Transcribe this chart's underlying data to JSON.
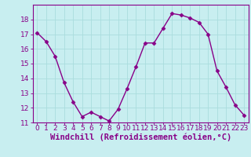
{
  "x": [
    0,
    1,
    2,
    3,
    4,
    5,
    6,
    7,
    8,
    9,
    10,
    11,
    12,
    13,
    14,
    15,
    16,
    17,
    18,
    19,
    20,
    21,
    22,
    23
  ],
  "y": [
    17.1,
    16.5,
    15.5,
    13.7,
    12.4,
    11.4,
    11.7,
    11.4,
    11.1,
    11.9,
    13.3,
    14.8,
    16.4,
    16.4,
    17.4,
    18.4,
    18.3,
    18.1,
    17.8,
    17.0,
    14.5,
    13.4,
    12.2,
    11.5
  ],
  "line_color": "#880088",
  "marker": "D",
  "marker_size": 2.5,
  "bg_color": "#c8eef0",
  "grid_color": "#aadddd",
  "xlabel": "Windchill (Refroidissement éolien,°C)",
  "xlabel_color": "#880088",
  "tick_color": "#880088",
  "spine_color": "#880088",
  "ylim": [
    11,
    19
  ],
  "xlim": [
    -0.5,
    23.5
  ],
  "yticks": [
    11,
    12,
    13,
    14,
    15,
    16,
    17,
    18
  ],
  "xticks": [
    0,
    1,
    2,
    3,
    4,
    5,
    6,
    7,
    8,
    9,
    10,
    11,
    12,
    13,
    14,
    15,
    16,
    17,
    18,
    19,
    20,
    21,
    22,
    23
  ],
  "linewidth": 1.0,
  "tick_fontsize": 6.5,
  "xlabel_fontsize": 7.5
}
